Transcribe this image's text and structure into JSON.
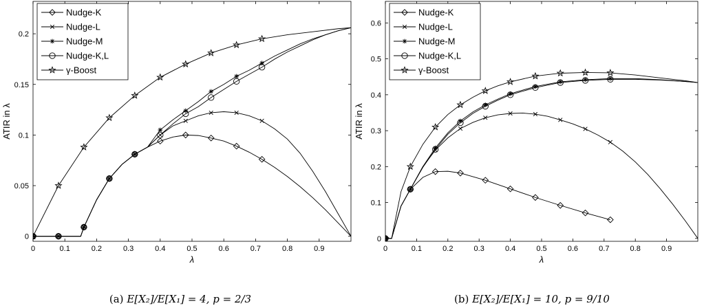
{
  "chart_data": [
    {
      "type": "line",
      "caption": "(a) E[X2]/E[X1] = 4, p = 2/3",
      "caption_parts": {
        "label": "(a) ",
        "expr": "E[X₂]/E[X₁] = 4, p = 2/3"
      },
      "xlabel": "λ",
      "ylabel": "ATIR in λ",
      "xlim": [
        0,
        1
      ],
      "ylim": [
        -0.005,
        0.232
      ],
      "x_ticks": [
        0,
        0.1,
        0.2,
        0.3,
        0.4,
        0.5,
        0.6,
        0.7,
        0.8,
        0.9
      ],
      "x_tick_labels": [
        "0",
        "0.1",
        "0.2",
        "0.3",
        "0.4",
        "0.5",
        "0.6",
        "0.7",
        "0.8",
        "0.9"
      ],
      "y_ticks": [
        0,
        0.05,
        0.1,
        0.15,
        0.2
      ],
      "y_tick_labels": [
        "0",
        "0.05",
        "0.1",
        "0.15",
        "0.2"
      ],
      "grid": false,
      "legend_position": "top-left",
      "marker_x": [
        0,
        0.08,
        0.16,
        0.24,
        0.32,
        0.4,
        0.48,
        0.56,
        0.64,
        0.72
      ],
      "series": [
        {
          "name": "Nudge-K",
          "marker": "diamond",
          "x": [
            0,
            0.08,
            0.15,
            0.16,
            0.2,
            0.24,
            0.28,
            0.32,
            0.36,
            0.4,
            0.44,
            0.48,
            0.52,
            0.56,
            0.6,
            0.64,
            0.68,
            0.72,
            0.76,
            0.8,
            0.84,
            0.88,
            0.92,
            0.96,
            1.0
          ],
          "y": [
            0,
            0,
            0,
            0.009,
            0.036,
            0.057,
            0.071,
            0.081,
            0.088,
            0.094,
            0.098,
            0.1,
            0.0995,
            0.097,
            0.094,
            0.089,
            0.083,
            0.076,
            0.068,
            0.059,
            0.049,
            0.038,
            0.026,
            0.013,
            0
          ]
        },
        {
          "name": "Nudge-L",
          "marker": "x",
          "x": [
            0,
            0.08,
            0.15,
            0.16,
            0.2,
            0.24,
            0.28,
            0.32,
            0.36,
            0.4,
            0.44,
            0.48,
            0.52,
            0.56,
            0.6,
            0.64,
            0.68,
            0.72,
            0.76,
            0.8,
            0.84,
            0.88,
            0.92,
            0.96,
            1.0
          ],
          "y": [
            0,
            0,
            0,
            0.009,
            0.036,
            0.057,
            0.071,
            0.081,
            0.088,
            0.1,
            0.109,
            0.114,
            0.119,
            0.122,
            0.123,
            0.122,
            0.119,
            0.114,
            0.106,
            0.096,
            0.082,
            0.064,
            0.044,
            0.022,
            0
          ]
        },
        {
          "name": "Nudge-M",
          "marker": "asterisk",
          "x": [
            0,
            0.08,
            0.15,
            0.16,
            0.2,
            0.24,
            0.28,
            0.32,
            0.36,
            0.4,
            0.44,
            0.48,
            0.52,
            0.56,
            0.6,
            0.64,
            0.68,
            0.72,
            0.76,
            0.8,
            0.84,
            0.88,
            0.92,
            0.96,
            1.0
          ],
          "y": [
            0,
            0,
            0,
            0.009,
            0.036,
            0.057,
            0.071,
            0.081,
            0.088,
            0.105,
            0.115,
            0.124,
            0.133,
            0.143,
            0.15,
            0.158,
            0.164,
            0.171,
            0.178,
            0.184,
            0.19,
            0.195,
            0.199,
            0.203,
            0.206
          ]
        },
        {
          "name": "Nudge-K,L",
          "marker": "circle",
          "x": [
            0,
            0.08,
            0.15,
            0.16,
            0.2,
            0.24,
            0.28,
            0.32,
            0.36,
            0.4,
            0.44,
            0.48,
            0.52,
            0.56,
            0.6,
            0.64,
            0.68,
            0.72,
            0.76,
            0.8,
            0.84,
            0.88,
            0.92,
            0.96,
            1.0
          ],
          "y": [
            0,
            0,
            0,
            0.009,
            0.036,
            0.057,
            0.071,
            0.081,
            0.088,
            0.1,
            0.111,
            0.121,
            0.128,
            0.137,
            0.145,
            0.153,
            0.16,
            0.167,
            0.175,
            0.182,
            0.188,
            0.194,
            0.199,
            0.203,
            0.206
          ]
        },
        {
          "name": "γ-Boost",
          "marker": "star",
          "x": [
            0,
            0.08,
            0.16,
            0.24,
            0.32,
            0.4,
            0.48,
            0.56,
            0.64,
            0.72,
            0.8,
            0.88,
            0.96,
            1.0
          ],
          "y": [
            0,
            0.05,
            0.088,
            0.117,
            0.139,
            0.157,
            0.17,
            0.181,
            0.189,
            0.195,
            0.199,
            0.202,
            0.205,
            0.206
          ]
        }
      ]
    },
    {
      "type": "line",
      "caption": "(b) E[X2]/E[X1] = 10, p = 9/10",
      "caption_parts": {
        "label": "(b) ",
        "expr": "E[X₂]/E[X₁] = 10, p = 9/10"
      },
      "xlabel": "λ",
      "ylabel": "ATIR in λ",
      "xlim": [
        0,
        1
      ],
      "ylim": [
        -0.008,
        0.66
      ],
      "x_ticks": [
        0,
        0.1,
        0.2,
        0.3,
        0.4,
        0.5,
        0.6,
        0.7,
        0.8,
        0.9
      ],
      "x_tick_labels": [
        "0",
        "0.1",
        "0.2",
        "0.3",
        "0.4",
        "0.5",
        "0.6",
        "0.7",
        "0.8",
        "0.9"
      ],
      "y_ticks": [
        0,
        0.1,
        0.2,
        0.3,
        0.4,
        0.5,
        0.6
      ],
      "y_tick_labels": [
        "0",
        "0.1",
        "0.2",
        "0.3",
        "0.4",
        "0.5",
        "0.6"
      ],
      "grid": false,
      "legend_position": "top-left",
      "marker_x": [
        0,
        0.08,
        0.16,
        0.24,
        0.32,
        0.4,
        0.48,
        0.56,
        0.64,
        0.72
      ],
      "series": [
        {
          "name": "Nudge-K",
          "marker": "diamond",
          "x": [
            0,
            0.02,
            0.05,
            0.08,
            0.12,
            0.16,
            0.2,
            0.24,
            0.32,
            0.4,
            0.48,
            0.56,
            0.64,
            0.72
          ],
          "y": [
            0,
            0,
            0.09,
            0.137,
            0.17,
            0.186,
            0.187,
            0.182,
            0.162,
            0.138,
            0.114,
            0.092,
            0.071,
            0.052
          ]
        },
        {
          "name": "Nudge-L",
          "marker": "x",
          "x": [
            0,
            0.02,
            0.05,
            0.08,
            0.12,
            0.16,
            0.2,
            0.24,
            0.28,
            0.32,
            0.36,
            0.4,
            0.44,
            0.48,
            0.52,
            0.56,
            0.6,
            0.64,
            0.68,
            0.72,
            0.76,
            0.8,
            0.84,
            0.88,
            0.92,
            0.96,
            1.0
          ],
          "y": [
            0,
            0,
            0.09,
            0.137,
            0.2,
            0.246,
            0.28,
            0.306,
            0.323,
            0.336,
            0.344,
            0.348,
            0.349,
            0.346,
            0.34,
            0.33,
            0.319,
            0.305,
            0.288,
            0.268,
            0.243,
            0.213,
            0.178,
            0.138,
            0.095,
            0.049,
            0
          ]
        },
        {
          "name": "Nudge-M",
          "marker": "asterisk",
          "x": [
            0,
            0.02,
            0.05,
            0.08,
            0.12,
            0.16,
            0.2,
            0.24,
            0.28,
            0.32,
            0.36,
            0.4,
            0.48,
            0.56,
            0.64,
            0.72,
            0.8,
            0.88,
            0.96,
            1.0
          ],
          "y": [
            0,
            0,
            0.09,
            0.137,
            0.2,
            0.252,
            0.294,
            0.327,
            0.352,
            0.372,
            0.388,
            0.403,
            0.423,
            0.436,
            0.442,
            0.445,
            0.445,
            0.442,
            0.437,
            0.434
          ]
        },
        {
          "name": "Nudge-K,L",
          "marker": "circle",
          "x": [
            0,
            0.02,
            0.05,
            0.08,
            0.12,
            0.16,
            0.2,
            0.24,
            0.28,
            0.32,
            0.36,
            0.4,
            0.48,
            0.56,
            0.64,
            0.72,
            0.8,
            0.88,
            0.96,
            1.0
          ],
          "y": [
            0,
            0,
            0.09,
            0.137,
            0.198,
            0.248,
            0.29,
            0.322,
            0.348,
            0.368,
            0.385,
            0.4,
            0.42,
            0.434,
            0.44,
            0.443,
            0.443,
            0.441,
            0.437,
            0.434
          ]
        },
        {
          "name": "γ-Boost",
          "marker": "star",
          "x": [
            0,
            0.02,
            0.05,
            0.08,
            0.12,
            0.16,
            0.2,
            0.24,
            0.28,
            0.32,
            0.36,
            0.4,
            0.48,
            0.56,
            0.64,
            0.72,
            0.8,
            0.88,
            0.96,
            1.0
          ],
          "y": [
            0,
            0,
            0.13,
            0.2,
            0.262,
            0.31,
            0.345,
            0.372,
            0.393,
            0.411,
            0.425,
            0.436,
            0.452,
            0.46,
            0.462,
            0.461,
            0.455,
            0.447,
            0.439,
            0.434
          ]
        }
      ]
    }
  ]
}
